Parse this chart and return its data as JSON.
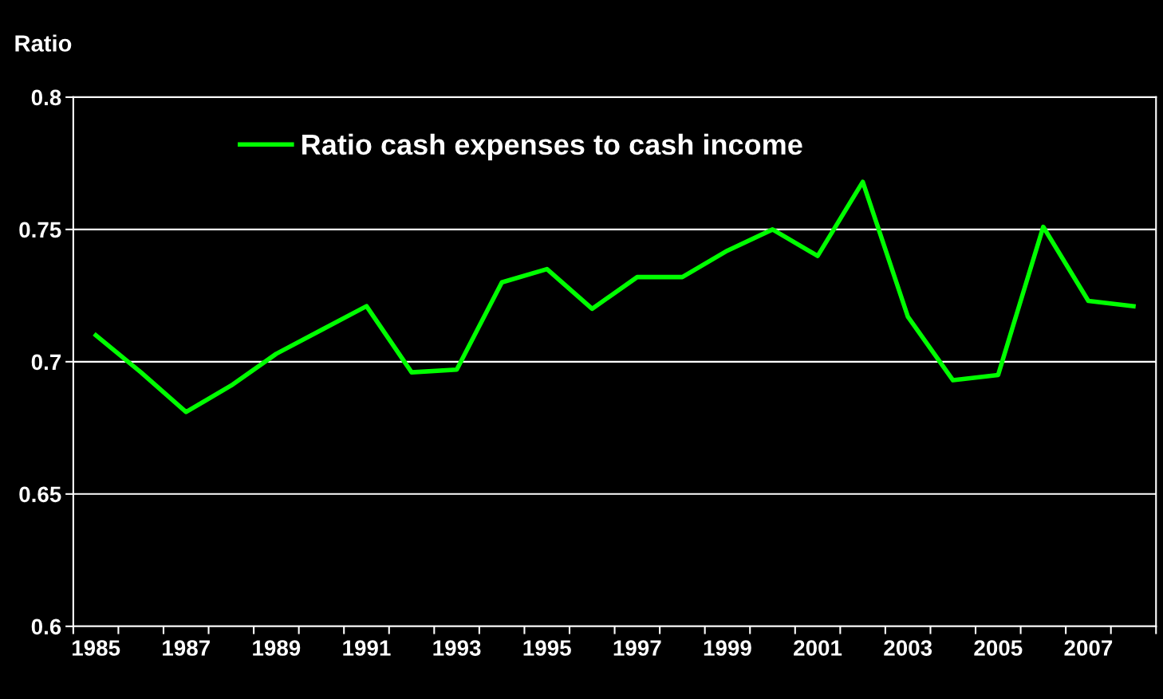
{
  "chart_data": {
    "type": "line",
    "ylabel": "Ratio",
    "categories": [
      "1985",
      null,
      "1987",
      null,
      "1989",
      null,
      "1991",
      null,
      "1993",
      null,
      "1995",
      null,
      "1997",
      null,
      "1999",
      null,
      "2001",
      null,
      "2003",
      null,
      "2005",
      null,
      "2007",
      null
    ],
    "series": [
      {
        "name": "Ratio cash expenses to cash income",
        "color": "#00ff00",
        "values": [
          0.71,
          0.696,
          0.681,
          0.691,
          0.703,
          0.712,
          0.721,
          0.696,
          0.697,
          0.73,
          0.735,
          0.72,
          0.732,
          0.732,
          0.742,
          0.75,
          0.74,
          0.768,
          0.717,
          0.693,
          0.695,
          0.751,
          0.723,
          0.721
        ]
      }
    ],
    "ylim": [
      0.6,
      0.8
    ],
    "yticks": [
      0.6,
      0.65,
      0.7,
      0.75,
      0.8
    ],
    "grid": "y",
    "legend": "top left",
    "marker": "none",
    "line_style": "solid"
  }
}
